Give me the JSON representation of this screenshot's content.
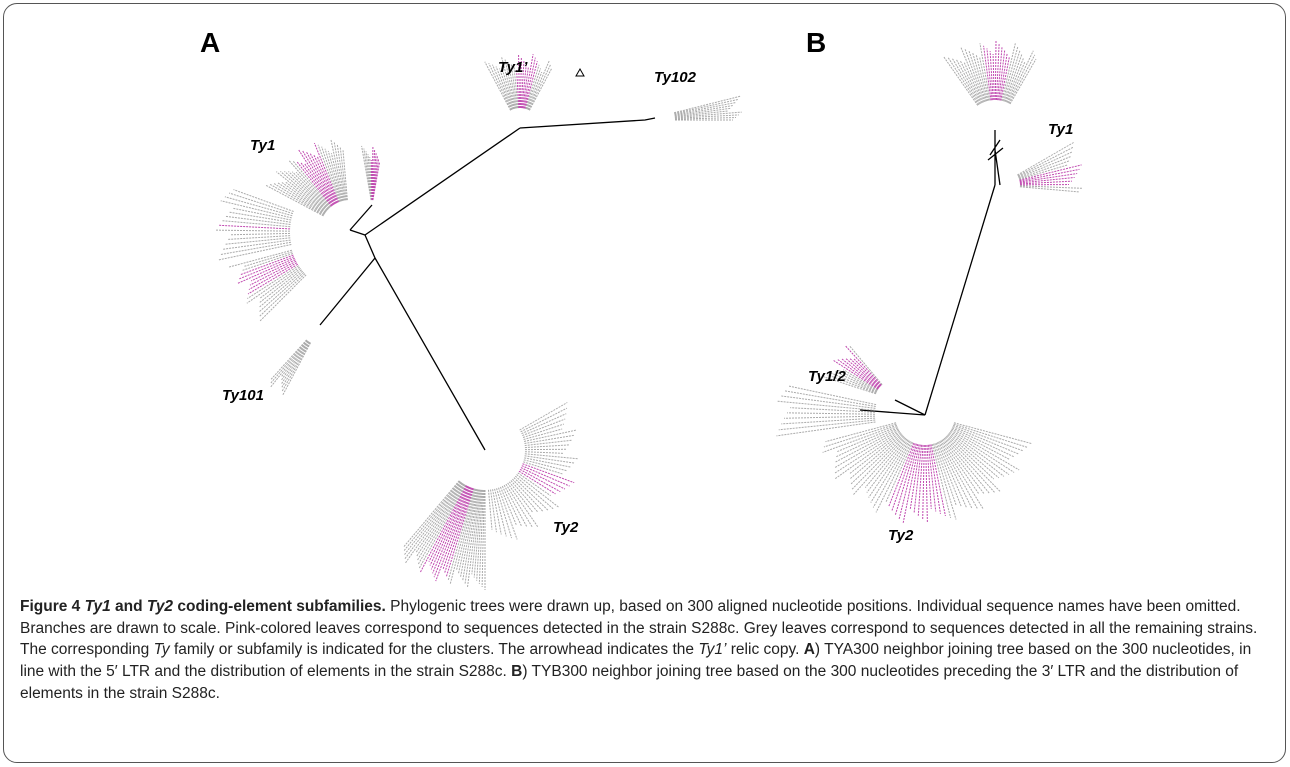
{
  "panels": [
    {
      "label": "A",
      "clusters": [
        "Ty1’",
        "Ty102",
        "Ty1",
        "Ty101",
        "Ty2"
      ]
    },
    {
      "label": "B",
      "clusters": [
        "Ty1",
        "Ty1/2",
        "Ty2"
      ]
    }
  ],
  "caption": {
    "runs": [
      {
        "text": "Figure 4 ",
        "style": "b"
      },
      {
        "text": "Ty1",
        "style": "bi"
      },
      {
        "text": " and ",
        "style": "b"
      },
      {
        "text": "Ty2",
        "style": "bi"
      },
      {
        "text": " coding-element subfamilies.",
        "style": "b"
      },
      {
        "text": " Phylogenic trees were drawn up, based on 300 aligned nucleotide positions. Individual sequence names have been omitted. Branches are drawn to scale. Pink-colored leaves correspond to sequences detected in the strain S288c. Grey leaves correspond to sequences detected in all the remaining strains. The corresponding "
      },
      {
        "text": "Ty",
        "style": "i"
      },
      {
        "text": " family or subfamily is indicated for the clusters. The arrowhead indicates the "
      },
      {
        "text": "Ty1’",
        "style": "i"
      },
      {
        "text": " relic copy. "
      },
      {
        "text": "A",
        "style": "b"
      },
      {
        "text": ") TYA300 neighbor joining tree based on the 300 nucleotides, in line with the 5′ LTR and the distribution of elements in the strain S288c. "
      },
      {
        "text": "B",
        "style": "b"
      },
      {
        "text": ") TYB300 neighbor joining tree based on the 300 nucleotides preceding the 3′ LTR and the distribution of elements in the strain S288c."
      }
    ]
  }
}
